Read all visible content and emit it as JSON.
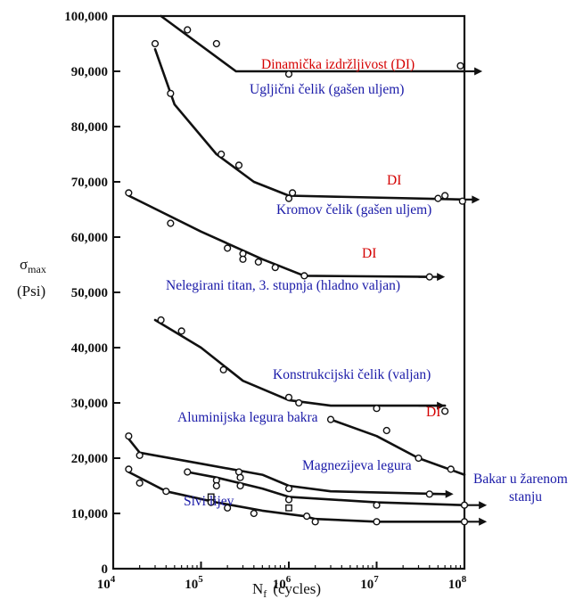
{
  "chart_data": {
    "type": "line",
    "x_scale": "log",
    "xlim": [
      10000,
      100000000
    ],
    "ylim": [
      0,
      100000
    ],
    "x_ticks": [
      {
        "value": 10000,
        "base": "10",
        "exp": "4"
      },
      {
        "value": 100000,
        "base": "10",
        "exp": "5"
      },
      {
        "value": 1000000,
        "base": "10",
        "exp": "6"
      },
      {
        "value": 10000000,
        "base": "10",
        "exp": "7"
      },
      {
        "value": 100000000,
        "base": "10",
        "exp": "8"
      }
    ],
    "y_ticks": [
      {
        "value": 0,
        "label": "0"
      },
      {
        "value": 10000,
        "label": "10,000"
      },
      {
        "value": 20000,
        "label": "20,000"
      },
      {
        "value": 30000,
        "label": "30,000"
      },
      {
        "value": 40000,
        "label": "40,000"
      },
      {
        "value": 50000,
        "label": "50,000"
      },
      {
        "value": 60000,
        "label": "60,000"
      },
      {
        "value": 70000,
        "label": "70,000"
      },
      {
        "value": 80000,
        "label": "80,000"
      },
      {
        "value": 90000,
        "label": "90,000"
      },
      {
        "value": 100000,
        "label": "100,000"
      }
    ],
    "xlabel": {
      "main": "N",
      "sub": "f",
      "suffix": "(cycles)"
    },
    "ylabel": {
      "main": "σ",
      "sub": "max",
      "unit": "(Psi)"
    },
    "series": [
      {
        "name": "Ugljični čelik (gašen uljem)",
        "line": [
          [
            35000,
            100000
          ],
          [
            250000,
            90000
          ],
          [
            100000000,
            90000
          ]
        ],
        "points": [
          [
            70000,
            97500
          ],
          [
            150000,
            95000
          ],
          [
            1000000,
            89500
          ],
          [
            90000000,
            91000
          ]
        ]
      },
      {
        "name": "Kromov čelik (gašen uljem)",
        "line": [
          [
            30000,
            94000
          ],
          [
            50000,
            84000
          ],
          [
            150000,
            75000
          ],
          [
            400000,
            70000
          ],
          [
            1000000,
            67500
          ],
          [
            100000000,
            66800
          ]
        ],
        "points": [
          [
            30000,
            95000
          ],
          [
            45000,
            86000
          ],
          [
            170000,
            75000
          ],
          [
            270000,
            73000
          ],
          [
            1000000,
            67000
          ],
          [
            1100000,
            68000
          ],
          [
            50000000,
            67000
          ],
          [
            60000000,
            67500
          ],
          [
            95000000,
            66500
          ]
        ]
      },
      {
        "name": "Nelegirani titan, 3. stupnja (hladno valjan)",
        "line": [
          [
            15000,
            67500
          ],
          [
            100000,
            61000
          ],
          [
            500000,
            56000
          ],
          [
            1500000,
            53000
          ],
          [
            40000000,
            52800
          ]
        ],
        "points": [
          [
            15000,
            68000
          ],
          [
            45000,
            62500
          ],
          [
            200000,
            58000
          ],
          [
            300000,
            57000
          ],
          [
            300000,
            56000
          ],
          [
            450000,
            55500
          ],
          [
            700000,
            54500
          ],
          [
            1500000,
            53000
          ],
          [
            40000000,
            52800
          ]
        ]
      },
      {
        "name": "Konstrukcijski čelik (valjan)",
        "line": [
          [
            30000,
            45000
          ],
          [
            100000,
            40000
          ],
          [
            300000,
            34000
          ],
          [
            1000000,
            30500
          ],
          [
            3000000,
            29500
          ],
          [
            60000000,
            29500
          ]
        ],
        "points": [
          [
            35000,
            45000
          ],
          [
            60000,
            43000
          ],
          [
            180000,
            36000
          ],
          [
            1000000,
            31000
          ],
          [
            1300000,
            30000
          ],
          [
            10000000,
            29000
          ],
          [
            60000000,
            28500
          ]
        ]
      },
      {
        "name": "DI",
        "line": [
          [
            3000000,
            27000
          ],
          [
            10000000,
            24000
          ],
          [
            30000000,
            20000
          ],
          [
            100000000,
            17000
          ]
        ],
        "points": [
          [
            3000000,
            27000
          ],
          [
            13000000,
            25000
          ],
          [
            30000000,
            20000
          ],
          [
            70000000,
            18000
          ]
        ]
      },
      {
        "name": "Aluminijska legura bakra",
        "line": [
          [
            15000,
            23500
          ],
          [
            20000,
            21000
          ],
          [
            100000,
            19000
          ],
          [
            500000,
            17000
          ],
          [
            1000000,
            15000
          ],
          [
            3000000,
            14000
          ],
          [
            60000000,
            13500
          ]
        ],
        "points": [
          [
            15000,
            24000
          ],
          [
            20000,
            20500
          ],
          [
            150000,
            16000
          ],
          [
            270000,
            17500
          ],
          [
            280000,
            16500
          ],
          [
            1000000,
            14500
          ],
          [
            40000000,
            13500
          ]
        ]
      },
      {
        "name": "Magnezijeva legura",
        "line": [
          [
            70000,
            17500
          ],
          [
            150000,
            16500
          ],
          [
            500000,
            14500
          ],
          [
            1000000,
            13000
          ],
          [
            10000000,
            12000
          ],
          [
            100000000,
            11500
          ]
        ],
        "points": [
          [
            70000,
            17500
          ],
          [
            150000,
            15000
          ],
          [
            280000,
            15000
          ],
          [
            1000000,
            12500
          ],
          [
            10000000,
            11500
          ],
          [
            100000000,
            11500
          ]
        ]
      },
      {
        "name": "Sivi lijev",
        "line": [
          [
            15000,
            17500
          ],
          [
            40000,
            14000
          ],
          [
            150000,
            12000
          ],
          [
            500000,
            10500
          ],
          [
            1500000,
            9500
          ],
          [
            2000000,
            9000
          ],
          [
            10000000,
            8500
          ],
          [
            100000000,
            8500
          ]
        ],
        "points": [
          [
            15000,
            18000
          ],
          [
            20000,
            15500
          ],
          [
            40000,
            14000
          ],
          [
            130000,
            12000
          ],
          [
            200000,
            11000
          ],
          [
            400000,
            10000
          ],
          [
            1600000,
            9500
          ],
          [
            2000000,
            8500
          ],
          [
            10000000,
            8500
          ],
          [
            100000000,
            8500
          ]
        ]
      }
    ],
    "square_points": [
      [
        130000,
        13000
      ],
      [
        1000000,
        11000
      ]
    ],
    "endurance_arrows": [
      {
        "from": [
          100000000,
          90000
        ],
        "to": [
          160000000,
          90000
        ]
      },
      {
        "from": [
          100000000,
          66800
        ],
        "to": [
          150000000,
          66800
        ]
      },
      {
        "from": [
          30000000,
          52800
        ],
        "to": [
          60000000,
          52800
        ]
      },
      {
        "from": [
          30000000,
          29500
        ],
        "to": [
          60000000,
          29500
        ]
      },
      {
        "from": [
          40000000,
          13500
        ],
        "to": [
          75000000,
          13500
        ]
      },
      {
        "from": [
          100000000,
          11500
        ],
        "to": [
          180000000,
          11500
        ]
      },
      {
        "from": [
          100000000,
          8500
        ],
        "to": [
          180000000,
          8500
        ]
      }
    ],
    "annotations": [
      {
        "id": "di-top",
        "text": "Dinamička izdržljivost (DI)",
        "color": "red"
      },
      {
        "id": "ugljicni",
        "text": "Ugljični čelik (gašen uljem)",
        "color": "blue"
      },
      {
        "id": "di-kromov",
        "text": "DI",
        "color": "red"
      },
      {
        "id": "kromov",
        "text": "Kromov čelik (gašen uljem)",
        "color": "blue"
      },
      {
        "id": "di-titan",
        "text": "DI",
        "color": "red"
      },
      {
        "id": "titan",
        "text": "Nelegirani titan, 3. stupnja (hladno valjan)",
        "color": "blue"
      },
      {
        "id": "konstrukcijski",
        "text": "Konstrukcijski čelik (valjan)",
        "color": "blue"
      },
      {
        "id": "di-konstr",
        "text": "DI",
        "color": "red"
      },
      {
        "id": "aluminijska",
        "text": "Aluminijska legura bakra",
        "color": "blue"
      },
      {
        "id": "magnezijeva",
        "text": "Magnezijeva legura",
        "color": "blue"
      },
      {
        "id": "bakar-1",
        "text": "Bakar u žarenom",
        "color": "blue"
      },
      {
        "id": "bakar-2",
        "text": "stanju",
        "color": "blue"
      },
      {
        "id": "sivi",
        "text": "Sivi lijev",
        "color": "blue"
      }
    ],
    "colors": {
      "annotation_blue": "#1a1aa8",
      "annotation_red": "#d40000",
      "line": "#111111"
    }
  }
}
